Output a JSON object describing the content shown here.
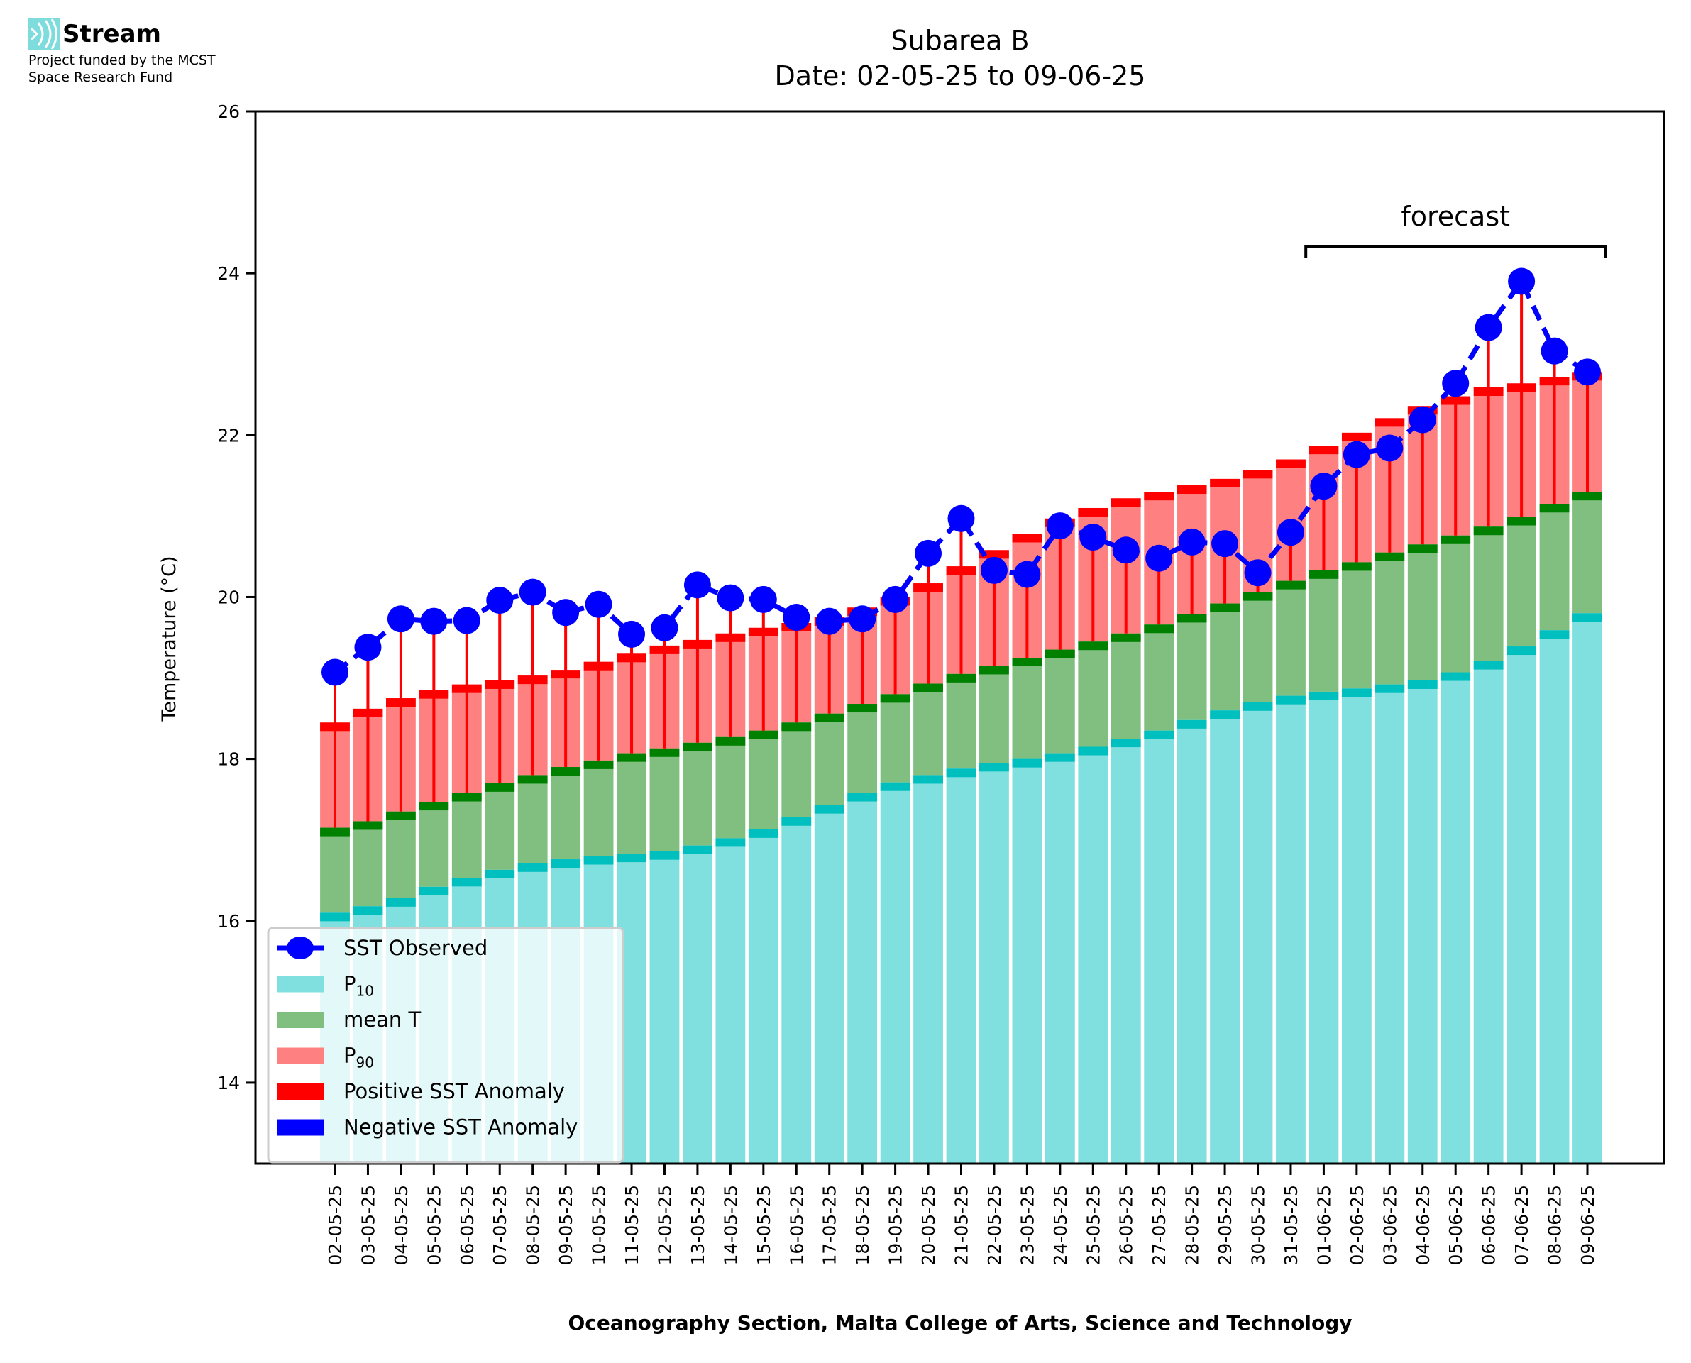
{
  "logo": {
    "name": "Stream",
    "icon": "stream-waves-icon",
    "subtitle_line1": "Project funded by the MCST",
    "subtitle_line2": "Space Research Fund",
    "color": "#7fdcdc"
  },
  "chart_data": {
    "type": "bar",
    "title_line1": "Subarea B",
    "title_line2": "Date: 02-05-25 to 09-06-25",
    "xlabel": "Oceanography Section, Malta College of Arts, Science and Technology",
    "ylabel": "Temperature (°C)",
    "ylim": [
      13.0,
      26.0
    ],
    "yticks": [
      14,
      16,
      18,
      20,
      22,
      24,
      26
    ],
    "grid": false,
    "legend_placement": "lower-left",
    "annotation": {
      "text": "forecast",
      "from": "01-06-25",
      "to": "09-06-25"
    },
    "colors": {
      "p10": "#80dfdf",
      "p10_edge": "#00bfbf",
      "mean": "#80bf80",
      "mean_edge": "#008000",
      "p90": "#ff8080",
      "p90_edge": "#ff0000",
      "sst": "#0000ff",
      "positive_anomaly": "#ff0000",
      "negative_anomaly": "#0000ff"
    },
    "legend": [
      {
        "label": "SST Observed",
        "key": "sst",
        "kind": "line-marker"
      },
      {
        "label": "P",
        "sub": "10",
        "key": "p10",
        "kind": "patch"
      },
      {
        "label": "mean T",
        "sub": "",
        "key": "mean",
        "kind": "patch"
      },
      {
        "label": "P",
        "sub": "90",
        "key": "p90",
        "kind": "patch"
      },
      {
        "label": "Positive SST Anomaly",
        "sub": "",
        "key": "positive_anomaly",
        "kind": "patch"
      },
      {
        "label": "Negative SST Anomaly",
        "sub": "",
        "key": "negative_anomaly",
        "kind": "patch"
      }
    ],
    "categories": [
      "02-05-25",
      "03-05-25",
      "04-05-25",
      "05-05-25",
      "06-05-25",
      "07-05-25",
      "08-05-25",
      "09-05-25",
      "10-05-25",
      "11-05-25",
      "12-05-25",
      "13-05-25",
      "14-05-25",
      "15-05-25",
      "16-05-25",
      "17-05-25",
      "18-05-25",
      "19-05-25",
      "20-05-25",
      "21-05-25",
      "22-05-25",
      "23-05-25",
      "24-05-25",
      "25-05-25",
      "26-05-25",
      "27-05-25",
      "28-05-25",
      "29-05-25",
      "30-05-25",
      "31-05-25",
      "01-06-25",
      "02-06-25",
      "03-06-25",
      "04-06-25",
      "05-06-25",
      "06-06-25",
      "07-06-25",
      "08-06-25",
      "09-06-25"
    ],
    "series": [
      {
        "name": "P10",
        "values": [
          16.1,
          16.18,
          16.28,
          16.42,
          16.53,
          16.63,
          16.71,
          16.76,
          16.8,
          16.83,
          16.86,
          16.93,
          17.02,
          17.13,
          17.28,
          17.43,
          17.58,
          17.71,
          17.8,
          17.88,
          17.95,
          18.0,
          18.07,
          18.15,
          18.25,
          18.35,
          18.48,
          18.6,
          18.7,
          18.78,
          18.83,
          18.87,
          18.92,
          18.97,
          19.07,
          19.21,
          19.39,
          19.59,
          19.8
        ]
      },
      {
        "name": "mean T",
        "values": [
          17.15,
          17.23,
          17.35,
          17.47,
          17.58,
          17.7,
          17.8,
          17.9,
          17.98,
          18.07,
          18.13,
          18.2,
          18.27,
          18.35,
          18.45,
          18.56,
          18.68,
          18.8,
          18.93,
          19.05,
          19.15,
          19.25,
          19.35,
          19.45,
          19.55,
          19.66,
          19.79,
          19.92,
          20.06,
          20.2,
          20.33,
          20.43,
          20.55,
          20.65,
          20.76,
          20.87,
          20.99,
          21.15,
          21.3
        ]
      },
      {
        "name": "P90",
        "values": [
          18.45,
          18.62,
          18.75,
          18.85,
          18.92,
          18.97,
          19.03,
          19.1,
          19.2,
          19.3,
          19.4,
          19.47,
          19.55,
          19.62,
          19.68,
          19.75,
          19.87,
          20.0,
          20.17,
          20.38,
          20.58,
          20.78,
          20.97,
          21.1,
          21.22,
          21.3,
          21.38,
          21.46,
          21.57,
          21.7,
          21.87,
          22.03,
          22.21,
          22.36,
          22.48,
          22.59,
          22.64,
          22.72,
          22.78
        ]
      },
      {
        "name": "SST Observed",
        "values": [
          19.07,
          19.38,
          19.73,
          19.7,
          19.71,
          19.96,
          20.06,
          19.81,
          19.91,
          19.54,
          19.62,
          20.15,
          19.99,
          19.97,
          19.75,
          19.7,
          19.73,
          19.97,
          20.54,
          20.97,
          20.33,
          20.28,
          20.88,
          20.74,
          20.58,
          20.48,
          20.68,
          20.66,
          20.3,
          20.8,
          21.37,
          21.76,
          21.84,
          22.19,
          22.64,
          23.33,
          23.9,
          23.04,
          22.78
        ]
      }
    ]
  }
}
